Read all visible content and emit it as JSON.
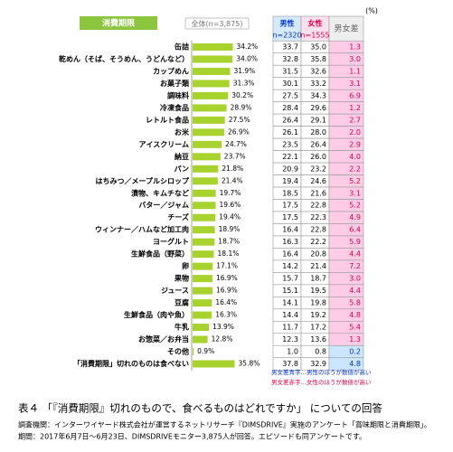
{
  "header": {
    "tab": "消費期限",
    "overall": "全体(n=3,875)",
    "unit": "(%)",
    "male": "男性",
    "male_n": "n=2320",
    "female": "女性",
    "female_n": "n=1555",
    "diff": "男女差"
  },
  "chart_data": {
    "type": "bar",
    "orientation": "horizontal",
    "color": "#a8d22e",
    "categories": [
      "缶詰",
      "乾めん（そば、そうめん、うどんなど）",
      "カップめん",
      "お菓子類",
      "調味料",
      "冷凍食品",
      "レトルト食品",
      "お米",
      "アイスクリーム",
      "納豆",
      "パン",
      "はちみつ／メープルシロップ",
      "漬物、キムチなど",
      "バター／ジャム",
      "チーズ",
      "ウィンナー／ハムなど加工肉",
      "ヨーグルト",
      "生鮮食品（野菜）",
      "卵",
      "果物",
      "ジュース",
      "豆腐",
      "生鮮食品（肉や魚）",
      "牛乳",
      "お惣菜／お弁当",
      "その他",
      "「消費期限」切れのものは食べない"
    ],
    "values": [
      34.2,
      34.0,
      31.9,
      31.3,
      30.2,
      28.9,
      27.5,
      26.9,
      24.7,
      23.7,
      21.8,
      21.4,
      19.7,
      19.6,
      19.4,
      18.9,
      18.7,
      18.1,
      17.1,
      16.9,
      16.9,
      16.4,
      16.3,
      13.9,
      12.8,
      0.9,
      35.8
    ],
    "value_labels": [
      "34.2%",
      "34.0%",
      "31.9%",
      "31.3%",
      "30.2%",
      "28.9%",
      "27.5%",
      "26.9%",
      "24.7%",
      "23.7%",
      "21.8%",
      "21.4%",
      "19.7%",
      "19.6%",
      "19.4%",
      "18.9%",
      "18.7%",
      "18.1%",
      "17.1%",
      "16.9%",
      "16.9%",
      "16.4%",
      "16.3%",
      "13.9%",
      "12.8%",
      "0.9%",
      "35.8%"
    ]
  },
  "table": {
    "male": [
      "33.7",
      "32.8",
      "31.5",
      "30.1",
      "27.5",
      "28.4",
      "26.4",
      "26.1",
      "23.5",
      "22.1",
      "20.9",
      "19.4",
      "18.5",
      "17.5",
      "17.5",
      "16.4",
      "16.3",
      "16.4",
      "14.2",
      "15.7",
      "15.1",
      "14.1",
      "14.4",
      "11.7",
      "12.3",
      "1.0",
      "37.8"
    ],
    "female": [
      "35.0",
      "35.8",
      "32.6",
      "33.2",
      "34.3",
      "29.6",
      "29.1",
      "28.0",
      "26.4",
      "26.0",
      "23.2",
      "24.6",
      "21.6",
      "22.8",
      "22.3",
      "22.8",
      "22.2",
      "20.8",
      "21.4",
      "18.7",
      "19.5",
      "19.8",
      "19.2",
      "17.2",
      "13.6",
      "0.8",
      "32.9"
    ],
    "diff": [
      "1.3",
      "3.0",
      "1.1",
      "3.1",
      "6.9",
      "1.2",
      "2.7",
      "2.0",
      "2.9",
      "4.0",
      "2.2",
      "5.2",
      "3.1",
      "5.2",
      "4.9",
      "6.4",
      "5.9",
      "4.4",
      "7.2",
      "3.0",
      "4.4",
      "5.8",
      "4.8",
      "5.4",
      "1.3",
      "0.2",
      "4.8"
    ],
    "diff_colors": [
      "#e0004a",
      "#e0004a",
      "#e0004a",
      "#e0004a",
      "#e0004a",
      "#e0004a",
      "#e0004a",
      "#e0004a",
      "#e0004a",
      "#e0004a",
      "#e0004a",
      "#e0004a",
      "#e0004a",
      "#e0004a",
      "#e0004a",
      "#e0004a",
      "#e0004a",
      "#e0004a",
      "#e0004a",
      "#e0004a",
      "#e0004a",
      "#e0004a",
      "#e0004a",
      "#e0004a",
      "#e0004a",
      "#0033cc",
      "#0033cc"
    ],
    "diff_bg": [
      "#ffcce6",
      "#ffcce6",
      "#ffcce6",
      "#ffcce6",
      "#ffcce6",
      "#ffcce6",
      "#ffcce6",
      "#ffcce6",
      "#ffcce6",
      "#ffcce6",
      "#ffcce6",
      "#ffcce6",
      "#ffcce6",
      "#ffcce6",
      "#ffcce6",
      "#ffcce6",
      "#ffcce6",
      "#ffcce6",
      "#ffcce6",
      "#ffcce6",
      "#ffcce6",
      "#ffcce6",
      "#ffcce6",
      "#ffcce6",
      "#ffcce6",
      "#cce6ff",
      "#cce6ff"
    ]
  },
  "notes": [
    {
      "text": "男女差青字…男性のほうが数値が高い",
      "color": "#0033cc"
    },
    {
      "text": "男女差赤字…女性のほうが数値が高い",
      "color": "#e0004a"
    }
  ],
  "caption": "表４ 「『消費期限』切れのもので、食べるものはどれですか」 についての回答",
  "source": [
    "調査機関：インターワイヤード株式会社が運営するネットリサーチ『DIMSDRIVE』実施のアンケート「賞味期限と消費期限」。",
    "期間：2017年6月7日～6月23日、DIMSDRIVEモニター3,875人が回答。エピソードも同アンケートです。"
  ]
}
